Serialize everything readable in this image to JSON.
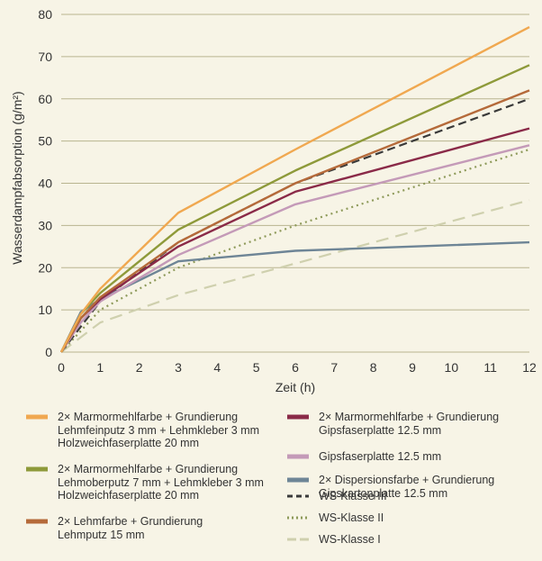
{
  "chart_data": {
    "type": "line",
    "xlabel": "Zeit (h)",
    "ylabel": "Wasserdampfabsorption (g/m²)",
    "xlim": [
      0,
      12
    ],
    "ylim": [
      0,
      80
    ],
    "xticks": [
      "0",
      "1",
      "2",
      "3",
      "4",
      "5",
      "6",
      "7",
      "8",
      "9",
      "10",
      "11",
      "12"
    ],
    "yticks": [
      "0",
      "10",
      "20",
      "30",
      "40",
      "50",
      "60",
      "70",
      "80"
    ],
    "grid": "horizontal",
    "series": [
      {
        "name": [
          "2× Marmormehlfarbe + Grundierung",
          "Lehmfeinputz 3 mm + Lehmkleber 3 mm",
          "Holzweichfaserplatte 20 mm"
        ],
        "color": "#f0a850",
        "dash": "solid",
        "x": [
          0,
          0.5,
          1,
          3,
          6,
          12
        ],
        "y": [
          0,
          9,
          15,
          33,
          48,
          77
        ]
      },
      {
        "name": [
          "2× Marmormehlfarbe + Grundierung",
          "Lehmoberputz 7 mm + Lehmkleber 3 mm",
          "Holzweichfaserplatte 20 mm"
        ],
        "color": "#8e9a3a",
        "dash": "solid",
        "x": [
          0,
          0.5,
          1,
          3,
          6,
          12
        ],
        "y": [
          0,
          9,
          14,
          29,
          43,
          68
        ]
      },
      {
        "name": [
          "2× Lehmfarbe + Grundierung",
          "Lehmputz 15 mm"
        ],
        "color": "#b56a3a",
        "dash": "solid",
        "x": [
          0,
          0.5,
          1,
          3,
          6,
          12
        ],
        "y": [
          0,
          8,
          13,
          26,
          40,
          62
        ]
      },
      {
        "name": [
          "2× Marmormehlfarbe + Grundierung",
          "Gipsfaserplatte 12.5 mm"
        ],
        "color": "#8a2a48",
        "dash": "solid",
        "x": [
          0,
          0.5,
          1,
          3,
          6,
          12
        ],
        "y": [
          0,
          8,
          12.5,
          25,
          38,
          53
        ]
      },
      {
        "name": [
          "Gipsfaserplatte 12.5 mm"
        ],
        "color": "#c49ab8",
        "dash": "solid",
        "x": [
          0,
          0.5,
          1,
          3,
          6,
          12
        ],
        "y": [
          0,
          7,
          12,
          23,
          35,
          49
        ]
      },
      {
        "name": [
          "2× Dispersionsfarbe + Grundierung",
          "Gipskartonplatte 12.5 mm"
        ],
        "color": "#6e8596",
        "dash": "solid",
        "x": [
          0,
          0.5,
          1,
          3,
          6,
          12
        ],
        "y": [
          0,
          9.5,
          12.5,
          21.5,
          24,
          26
        ]
      },
      {
        "name": [
          "WS-Klasse III"
        ],
        "color": "#3a3a3a",
        "dash": "dash",
        "x": [
          0,
          1,
          3,
          6,
          12
        ],
        "y": [
          0,
          12,
          26,
          40,
          60
        ]
      },
      {
        "name": [
          "WS-Klasse II"
        ],
        "color": "#8e9a5a",
        "dash": "dot",
        "x": [
          0,
          1,
          3,
          6,
          12
        ],
        "y": [
          0,
          10,
          20,
          30,
          48
        ]
      },
      {
        "name": [
          "WS-Klasse I"
        ],
        "color": "#cfd0ae",
        "dash": "longdash",
        "x": [
          0,
          1,
          3,
          6,
          12
        ],
        "y": [
          0,
          7,
          13.5,
          21,
          36
        ]
      }
    ]
  }
}
